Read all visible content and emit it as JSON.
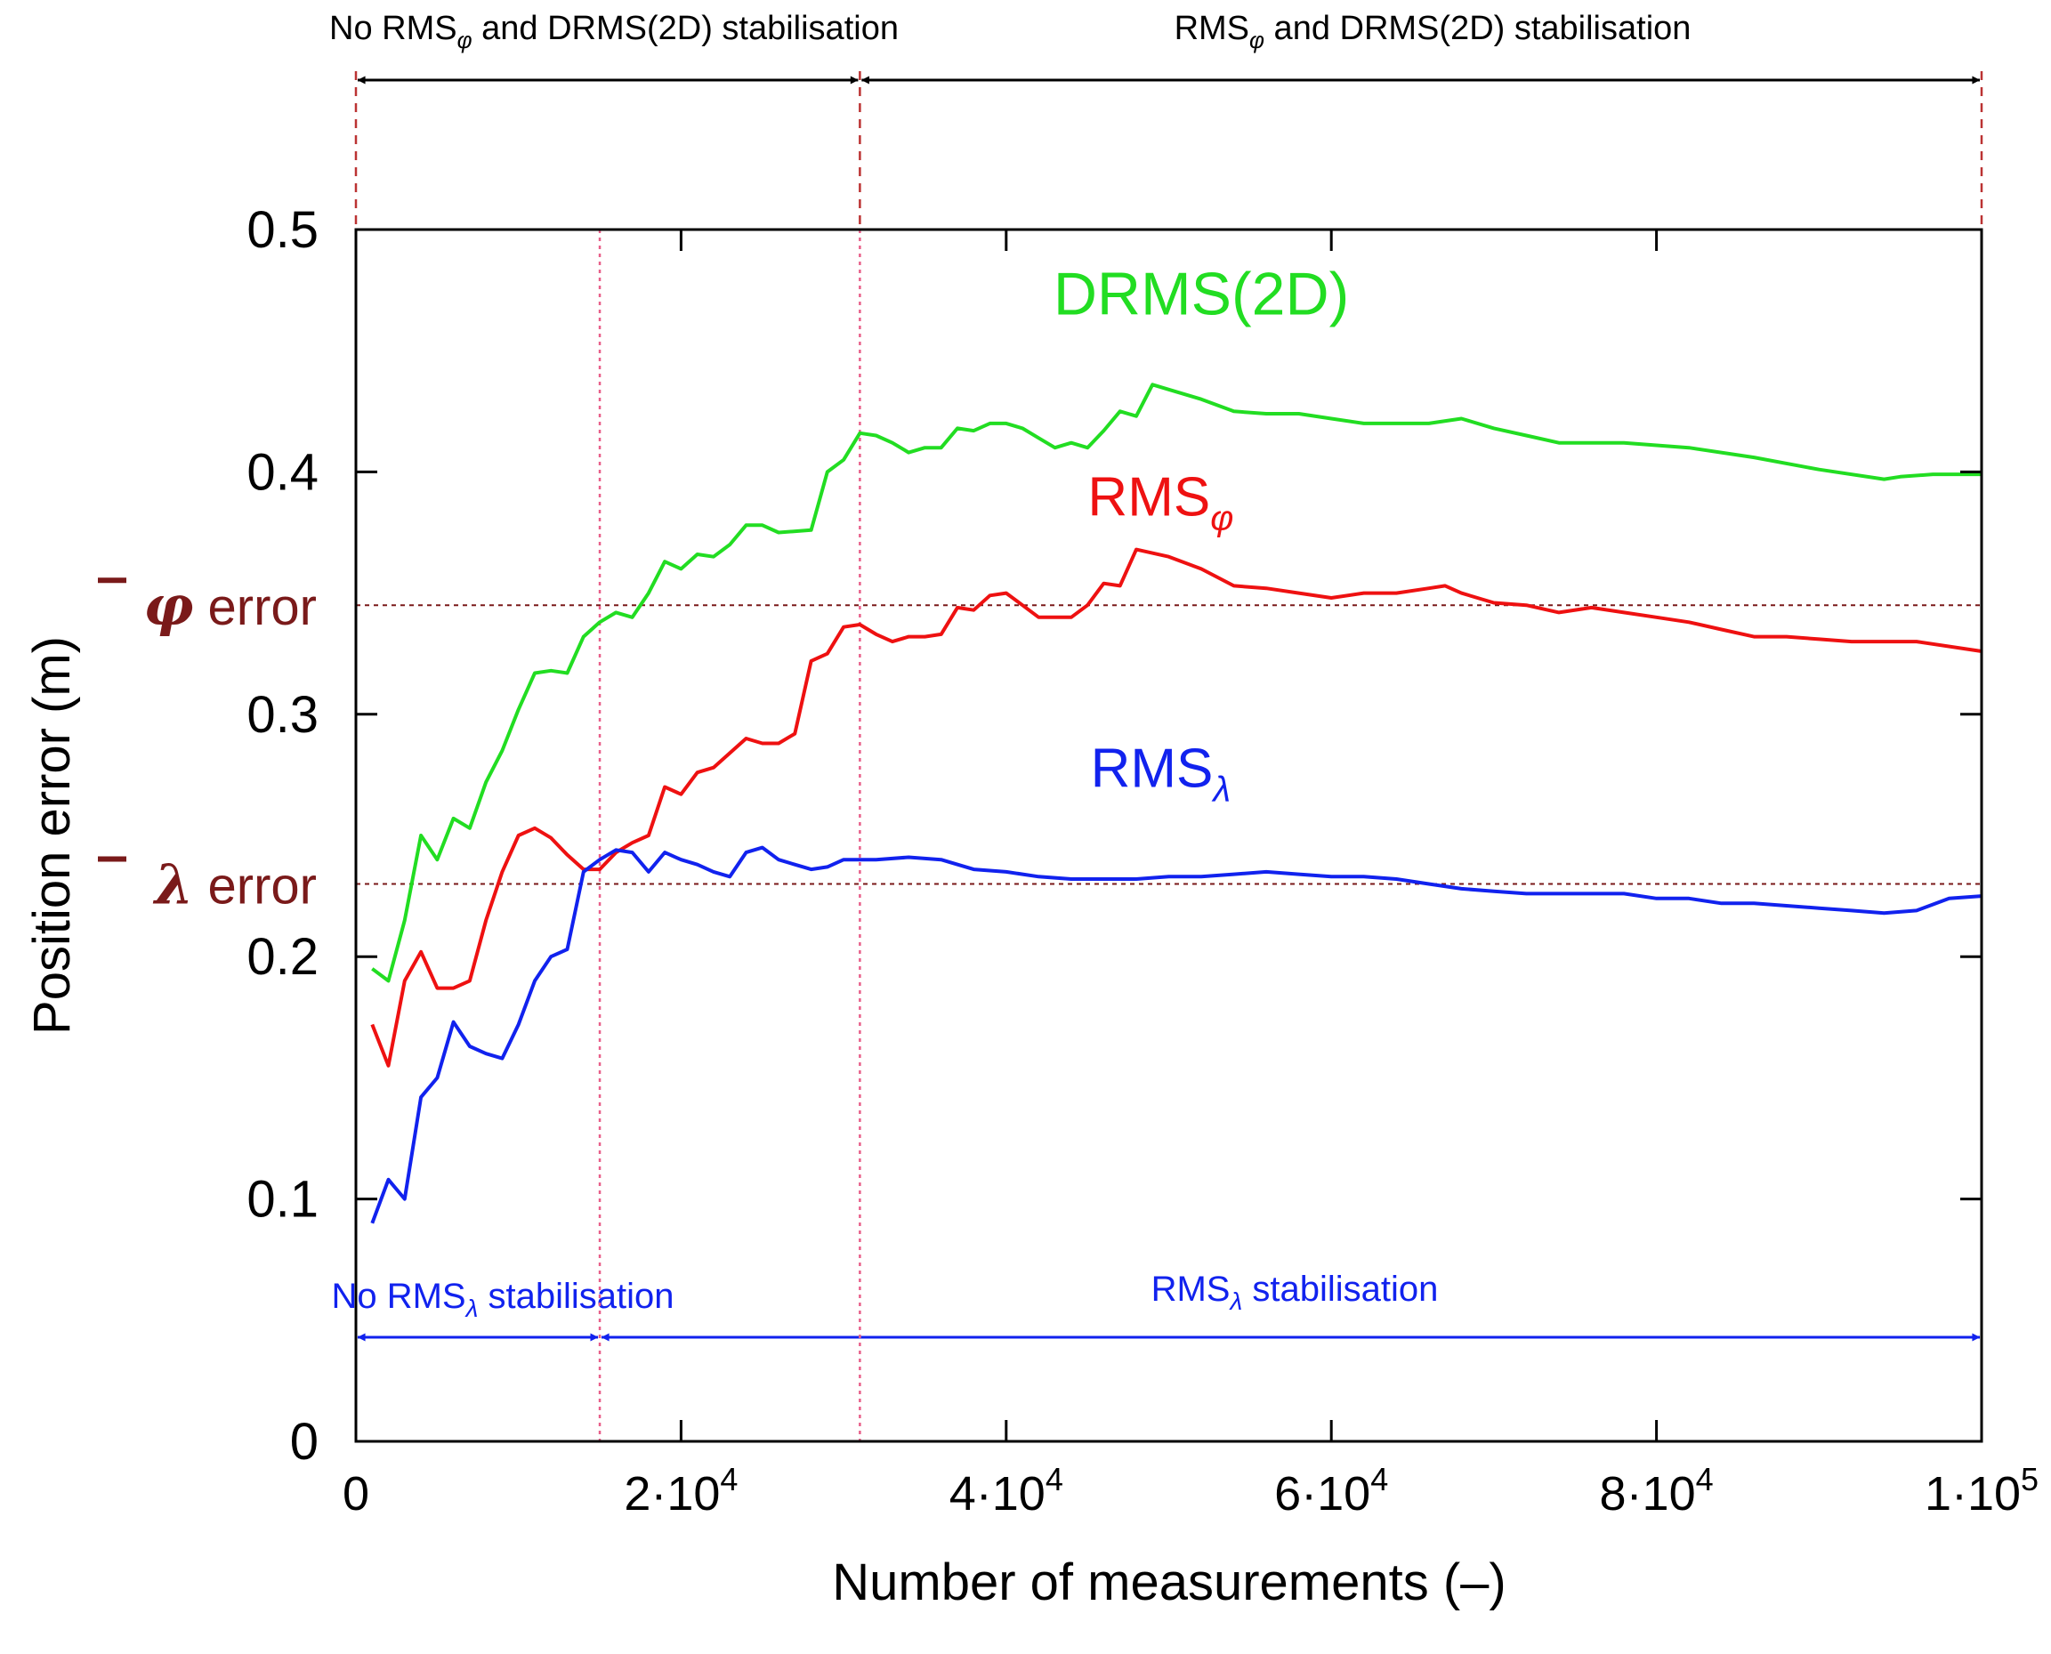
{
  "chart_data": {
    "type": "line",
    "xlabel": "Number of measurements (–)",
    "ylabel": "Position error (m)",
    "xlim": [
      0,
      100000
    ],
    "ylim": [
      0,
      0.5
    ],
    "x_ticks": [
      {
        "value": 0,
        "base": "0",
        "exp": ""
      },
      {
        "value": 20000,
        "base": "2·10",
        "exp": "4"
      },
      {
        "value": 40000,
        "base": "4·10",
        "exp": "4"
      },
      {
        "value": 60000,
        "base": "6·10",
        "exp": "4"
      },
      {
        "value": 80000,
        "base": "8·10",
        "exp": "4"
      },
      {
        "value": 100000,
        "base": "1·10",
        "exp": "5"
      }
    ],
    "y_ticks": [
      {
        "value": 0,
        "label": "0"
      },
      {
        "value": 0.1,
        "label": "0.1"
      },
      {
        "value": 0.2,
        "label": "0.2"
      },
      {
        "value": 0.3,
        "label": "0.3"
      },
      {
        "value": 0.4,
        "label": "0.4"
      },
      {
        "value": 0.5,
        "label": "0.5"
      }
    ],
    "series": [
      {
        "name": "DRMS(2D)",
        "label_base": "DRMS(2D)",
        "label_sub": "",
        "color": "#22dd22",
        "label_at": [
          52000,
          0.465
        ],
        "points": [
          [
            1000,
            0.195
          ],
          [
            2000,
            0.19
          ],
          [
            3000,
            0.215
          ],
          [
            4000,
            0.25
          ],
          [
            5000,
            0.24
          ],
          [
            6000,
            0.257
          ],
          [
            7000,
            0.253
          ],
          [
            8000,
            0.272
          ],
          [
            9000,
            0.285
          ],
          [
            10000,
            0.302
          ],
          [
            11000,
            0.317
          ],
          [
            12000,
            0.318
          ],
          [
            13000,
            0.317
          ],
          [
            14000,
            0.332
          ],
          [
            15000,
            0.338
          ],
          [
            16000,
            0.342
          ],
          [
            17000,
            0.34
          ],
          [
            18000,
            0.35
          ],
          [
            19000,
            0.363
          ],
          [
            20000,
            0.36
          ],
          [
            21000,
            0.366
          ],
          [
            22000,
            0.365
          ],
          [
            23000,
            0.37
          ],
          [
            24000,
            0.378
          ],
          [
            25000,
            0.378
          ],
          [
            26000,
            0.375
          ],
          [
            28000,
            0.376
          ],
          [
            29000,
            0.4
          ],
          [
            30000,
            0.405
          ],
          [
            31000,
            0.416
          ],
          [
            32000,
            0.415
          ],
          [
            33000,
            0.412
          ],
          [
            34000,
            0.408
          ],
          [
            35000,
            0.41
          ],
          [
            36000,
            0.41
          ],
          [
            37000,
            0.418
          ],
          [
            38000,
            0.417
          ],
          [
            39000,
            0.42
          ],
          [
            40000,
            0.42
          ],
          [
            41000,
            0.418
          ],
          [
            42000,
            0.414
          ],
          [
            43000,
            0.41
          ],
          [
            44000,
            0.412
          ],
          [
            45000,
            0.41
          ],
          [
            46000,
            0.417
          ],
          [
            47000,
            0.425
          ],
          [
            48000,
            0.423
          ],
          [
            49000,
            0.436
          ],
          [
            50000,
            0.434
          ],
          [
            52000,
            0.43
          ],
          [
            54000,
            0.425
          ],
          [
            56000,
            0.424
          ],
          [
            58000,
            0.424
          ],
          [
            60000,
            0.422
          ],
          [
            62000,
            0.42
          ],
          [
            66000,
            0.42
          ],
          [
            68000,
            0.422
          ],
          [
            70000,
            0.418
          ],
          [
            72000,
            0.415
          ],
          [
            74000,
            0.412
          ],
          [
            78000,
            0.412
          ],
          [
            82000,
            0.41
          ],
          [
            86000,
            0.406
          ],
          [
            90000,
            0.401
          ],
          [
            94000,
            0.397
          ],
          [
            95000,
            0.398
          ],
          [
            97000,
            0.399
          ],
          [
            100000,
            0.399
          ]
        ]
      },
      {
        "name": "RMSφ",
        "label_base": "RMS",
        "label_sub": "φ",
        "color": "#ee1111",
        "label_at": [
          49500,
          0.382
        ],
        "points": [
          [
            1000,
            0.172
          ],
          [
            2000,
            0.155
          ],
          [
            3000,
            0.19
          ],
          [
            4000,
            0.202
          ],
          [
            5000,
            0.187
          ],
          [
            6000,
            0.187
          ],
          [
            7000,
            0.19
          ],
          [
            8000,
            0.215
          ],
          [
            9000,
            0.235
          ],
          [
            10000,
            0.25
          ],
          [
            11000,
            0.253
          ],
          [
            12000,
            0.249
          ],
          [
            13000,
            0.242
          ],
          [
            14000,
            0.236
          ],
          [
            15000,
            0.236
          ],
          [
            16000,
            0.243
          ],
          [
            17000,
            0.247
          ],
          [
            18000,
            0.25
          ],
          [
            19000,
            0.27
          ],
          [
            20000,
            0.267
          ],
          [
            21000,
            0.276
          ],
          [
            22000,
            0.278
          ],
          [
            23000,
            0.284
          ],
          [
            24000,
            0.29
          ],
          [
            25000,
            0.288
          ],
          [
            26000,
            0.288
          ],
          [
            27000,
            0.292
          ],
          [
            28000,
            0.322
          ],
          [
            29000,
            0.325
          ],
          [
            30000,
            0.336
          ],
          [
            31000,
            0.337
          ],
          [
            32000,
            0.333
          ],
          [
            33000,
            0.33
          ],
          [
            34000,
            0.332
          ],
          [
            35000,
            0.332
          ],
          [
            36000,
            0.333
          ],
          [
            37000,
            0.344
          ],
          [
            38000,
            0.343
          ],
          [
            39000,
            0.349
          ],
          [
            40000,
            0.35
          ],
          [
            41000,
            0.345
          ],
          [
            42000,
            0.34
          ],
          [
            44000,
            0.34
          ],
          [
            45000,
            0.345
          ],
          [
            46000,
            0.354
          ],
          [
            47000,
            0.353
          ],
          [
            48000,
            0.368
          ],
          [
            50000,
            0.365
          ],
          [
            52000,
            0.36
          ],
          [
            54000,
            0.353
          ],
          [
            56000,
            0.352
          ],
          [
            58000,
            0.35
          ],
          [
            60000,
            0.348
          ],
          [
            62000,
            0.35
          ],
          [
            64000,
            0.35
          ],
          [
            66000,
            0.352
          ],
          [
            67000,
            0.353
          ],
          [
            68000,
            0.35
          ],
          [
            70000,
            0.346
          ],
          [
            72000,
            0.345
          ],
          [
            74000,
            0.342
          ],
          [
            76000,
            0.344
          ],
          [
            78000,
            0.342
          ],
          [
            80000,
            0.34
          ],
          [
            82000,
            0.338
          ],
          [
            84000,
            0.335
          ],
          [
            86000,
            0.332
          ],
          [
            88000,
            0.332
          ],
          [
            90000,
            0.331
          ],
          [
            92000,
            0.33
          ],
          [
            96000,
            0.33
          ],
          [
            100000,
            0.326
          ]
        ]
      },
      {
        "name": "RMSλ",
        "label_base": "RMS",
        "label_sub": "λ",
        "color": "#1122ee",
        "label_at": [
          49500,
          0.27
        ],
        "points": [
          [
            1000,
            0.09
          ],
          [
            2000,
            0.108
          ],
          [
            3000,
            0.1
          ],
          [
            4000,
            0.142
          ],
          [
            5000,
            0.15
          ],
          [
            6000,
            0.173
          ],
          [
            7000,
            0.163
          ],
          [
            8000,
            0.16
          ],
          [
            9000,
            0.158
          ],
          [
            10000,
            0.172
          ],
          [
            11000,
            0.19
          ],
          [
            12000,
            0.2
          ],
          [
            13000,
            0.203
          ],
          [
            14000,
            0.235
          ],
          [
            15000,
            0.24
          ],
          [
            16000,
            0.244
          ],
          [
            17000,
            0.243
          ],
          [
            18000,
            0.235
          ],
          [
            19000,
            0.243
          ],
          [
            20000,
            0.24
          ],
          [
            21000,
            0.238
          ],
          [
            22000,
            0.235
          ],
          [
            23000,
            0.233
          ],
          [
            24000,
            0.243
          ],
          [
            25000,
            0.245
          ],
          [
            26000,
            0.24
          ],
          [
            27000,
            0.238
          ],
          [
            28000,
            0.236
          ],
          [
            29000,
            0.237
          ],
          [
            30000,
            0.24
          ],
          [
            32000,
            0.24
          ],
          [
            34000,
            0.241
          ],
          [
            36000,
            0.24
          ],
          [
            38000,
            0.236
          ],
          [
            40000,
            0.235
          ],
          [
            42000,
            0.233
          ],
          [
            44000,
            0.232
          ],
          [
            46000,
            0.232
          ],
          [
            48000,
            0.232
          ],
          [
            50000,
            0.233
          ],
          [
            52000,
            0.233
          ],
          [
            54000,
            0.234
          ],
          [
            56000,
            0.235
          ],
          [
            58000,
            0.234
          ],
          [
            60000,
            0.233
          ],
          [
            62000,
            0.233
          ],
          [
            64000,
            0.232
          ],
          [
            66000,
            0.23
          ],
          [
            68000,
            0.228
          ],
          [
            70000,
            0.227
          ],
          [
            72000,
            0.226
          ],
          [
            74000,
            0.226
          ],
          [
            76000,
            0.226
          ],
          [
            78000,
            0.226
          ],
          [
            80000,
            0.224
          ],
          [
            82000,
            0.224
          ],
          [
            84000,
            0.222
          ],
          [
            86000,
            0.222
          ],
          [
            88000,
            0.221
          ],
          [
            90000,
            0.22
          ],
          [
            92000,
            0.219
          ],
          [
            94000,
            0.218
          ],
          [
            96000,
            0.219
          ],
          [
            98000,
            0.224
          ],
          [
            100000,
            0.225
          ]
        ]
      }
    ],
    "reference_lines": [
      {
        "symbol": "φ",
        "text": "error",
        "value": 0.345
      },
      {
        "symbol": "λ",
        "text": "error",
        "value": 0.23
      }
    ],
    "vertical_markers": [
      15000,
      31000
    ],
    "regions_top": [
      {
        "text_pre": "No RMS",
        "sub": "φ",
        "text_post": " and DRMS(2D) stabilisation",
        "from": 0,
        "to": 31000
      },
      {
        "text_pre": "RMS",
        "sub": "φ",
        "text_post": " and DRMS(2D) stabilisation",
        "from": 31000,
        "to": 100000
      }
    ],
    "regions_bottom": [
      {
        "text_pre": "No RMS",
        "sub": "λ",
        "text_post": " stabilisation",
        "from": 0,
        "to": 15000
      },
      {
        "text_pre": "RMS",
        "sub": "λ",
        "text_post": " stabilisation",
        "from": 15000,
        "to": 100000
      }
    ],
    "colors": {
      "reference": "#7a1a1a",
      "marker": "#e8608a",
      "top_arrow": "#000000",
      "bottom_arrow": "#1122ee",
      "axis": "#000000"
    }
  }
}
